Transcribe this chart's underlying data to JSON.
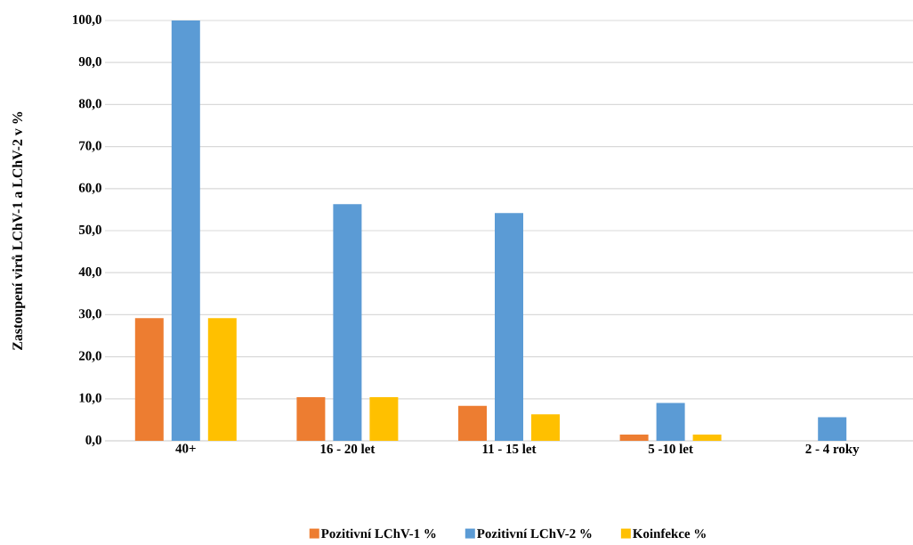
{
  "chart_data": {
    "type": "bar",
    "ylabel": "Zastoupení virů LChV-1 a LChV-2 v %",
    "categories": [
      "40+",
      "16 - 20 let",
      "11 - 15 let",
      "5 -10 let",
      "2 - 4 roky"
    ],
    "series": [
      {
        "name": "Pozitivní LChV-1 %",
        "color": "#ed7d31",
        "values": [
          29.2,
          10.4,
          8.3,
          1.5,
          0
        ]
      },
      {
        "name": "Pozitivní LChV-2 %",
        "color": "#5b9bd5",
        "values": [
          100,
          56.3,
          54.2,
          9.0,
          5.6
        ]
      },
      {
        "name": "Koinfekce %",
        "color": "#ffc000",
        "values": [
          29.2,
          10.4,
          6.3,
          1.5,
          0
        ]
      }
    ],
    "ylim": [
      0,
      100
    ],
    "yticks": [
      {
        "value": 0,
        "label": "0,0"
      },
      {
        "value": 10,
        "label": "10,0"
      },
      {
        "value": 20,
        "label": "20,0"
      },
      {
        "value": 30,
        "label": "30,0"
      },
      {
        "value": 40,
        "label": "40,0"
      },
      {
        "value": 50,
        "label": "50,0"
      },
      {
        "value": 60,
        "label": "60,0"
      },
      {
        "value": 70,
        "label": "70,0"
      },
      {
        "value": 80,
        "label": "80,0"
      },
      {
        "value": 90,
        "label": "90,0"
      },
      {
        "value": 100,
        "label": "100,0"
      }
    ],
    "grid": "y",
    "legend": "bottom"
  }
}
